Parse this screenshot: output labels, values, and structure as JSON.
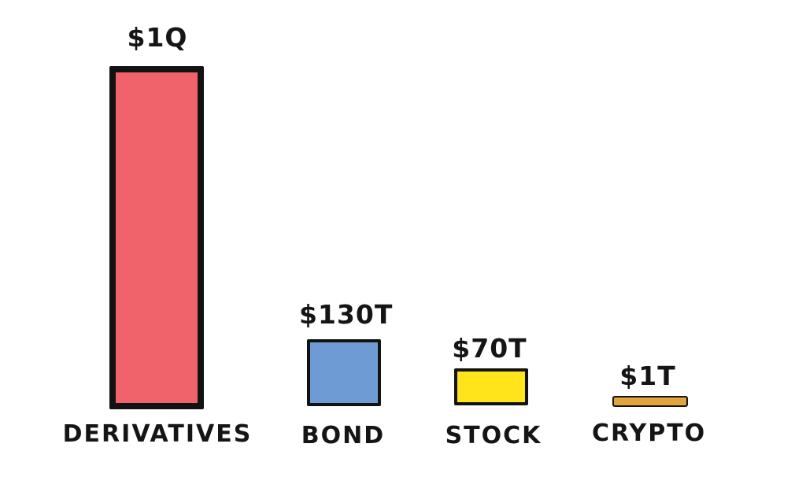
{
  "chart_data": {
    "type": "bar",
    "title": "",
    "xlabel": "",
    "ylabel": "",
    "legend": false,
    "grid": false,
    "background_color": "#ffffff",
    "outline_color": "#121212",
    "categories": [
      "DERIVATIVES",
      "BOND",
      "STOCK",
      "CRYPTO"
    ],
    "values_usd_trillions": [
      1000,
      130,
      70,
      1
    ],
    "bars": [
      {
        "category": "DERIVATIVES",
        "value_label": "$1Q",
        "value_usd_trillions": 1000,
        "fill": "#f1636b"
      },
      {
        "category": "BOND",
        "value_label": "$130T",
        "value_usd_trillions": 130,
        "fill": "#6f9bd5"
      },
      {
        "category": "STOCK",
        "value_label": "$70T",
        "value_usd_trillions": 70,
        "fill": "#ffe41c"
      },
      {
        "category": "CRYPTO",
        "value_label": "$1T",
        "value_usd_trillions": 1,
        "fill": "#e2a43e"
      }
    ]
  }
}
